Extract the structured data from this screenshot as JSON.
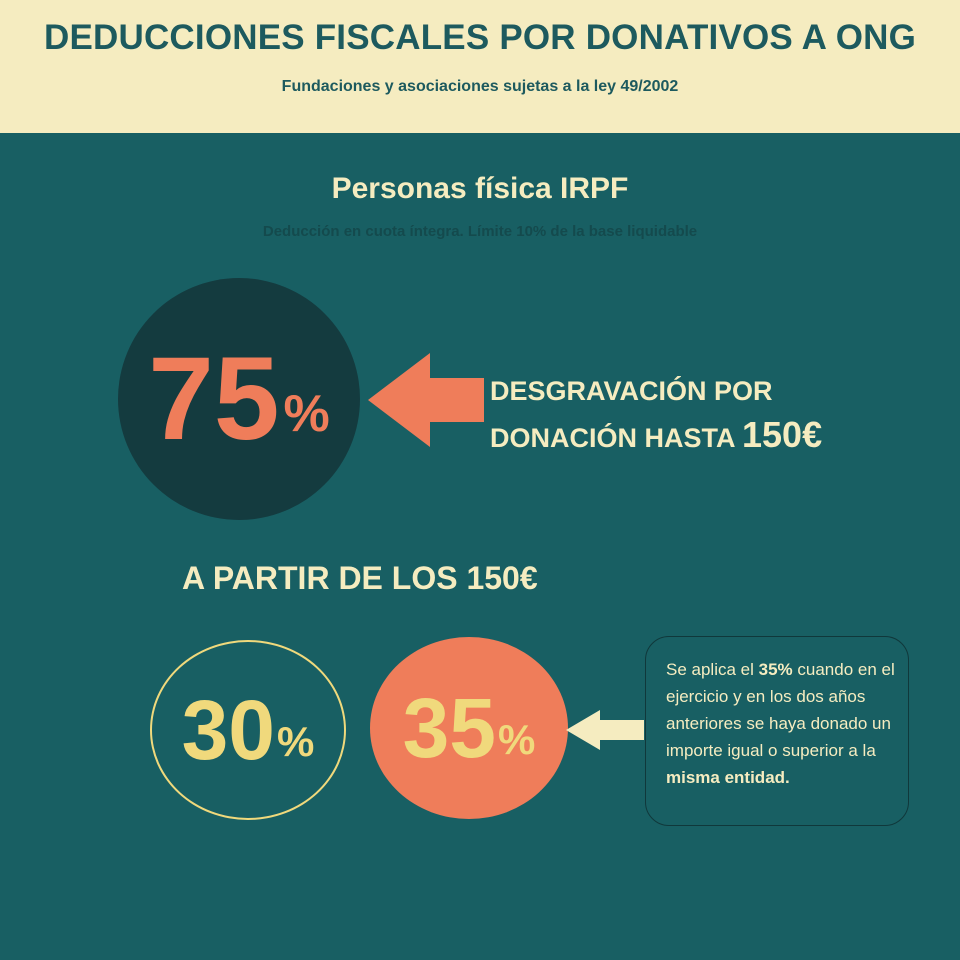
{
  "header": {
    "title": "DEDUCCIONES FISCALES POR DONATIVOS A ONG",
    "subtitle": "Fundaciones y asociaciones sujetas a la ley 49/2002"
  },
  "section": {
    "title": "Personas física IRPF",
    "subtitle": "Deducción en cuota íntegra. Límite 10% de la base liquidable"
  },
  "main_rate": {
    "value": "75",
    "unit": "%",
    "desc_line1": "DESGRAVACIÓN POR",
    "desc_line2": "DONACIÓN HASTA",
    "desc_amount": "150€"
  },
  "from_section": {
    "title": "A PARTIR DE LOS 150€",
    "rate_a": {
      "value": "30",
      "unit": "%"
    },
    "rate_b": {
      "value": "35",
      "unit": "%"
    }
  },
  "note": {
    "part1": "Se aplica el ",
    "bold1": "35%",
    "part2": " cuando en el ejercicio y en los dos años anteriores se haya donado un importe igual o superior a la ",
    "bold2": "misma entidad."
  },
  "colors": {
    "background": "#185f63",
    "header_bg": "#f5ecc0",
    "accent_orange": "#ef7d5a",
    "accent_yellow": "#f0d97c",
    "dark_circle": "#143b3f"
  },
  "icons": [
    "arrow-left-icon",
    "arrow-left-small-icon"
  ]
}
